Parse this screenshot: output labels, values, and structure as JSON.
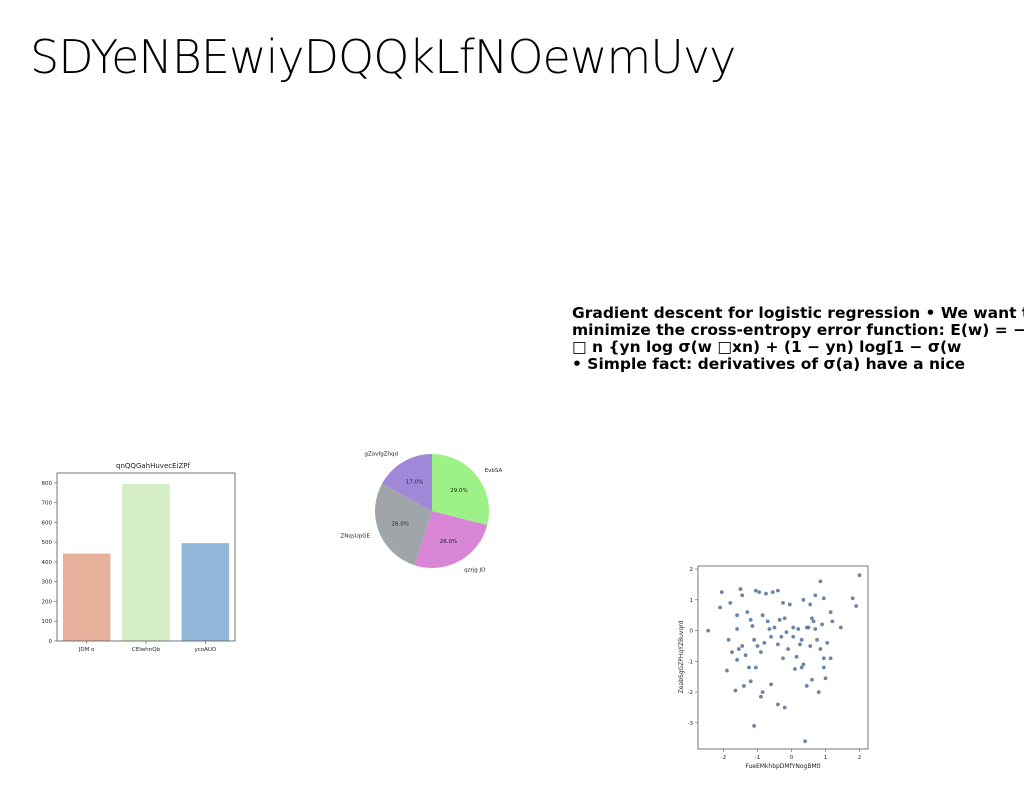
{
  "slide": {
    "title": "SDYeNBEwiyDQQkLfNOewmUvy",
    "text_lines": [
      "Gradient descent for logistic regression • We want to",
      "minimize the cross-entropy error function: E(w) = −",
      "□ n {yn log σ(w □xn) + (1 − yn) log[1 − σ(w",
      "• Simple fact: derivatives of σ(a) have a nice"
    ]
  },
  "chart_data": [
    {
      "type": "bar",
      "title": "qnQQGahHuvecEiZPf",
      "categories": [
        "JDM o",
        "CEIwhnQb",
        "ycoAUO"
      ],
      "values": [
        442,
        795,
        495
      ],
      "colors": [
        "#e6b09a",
        "#d4eec5",
        "#92b6da"
      ],
      "ylim": [
        0,
        850
      ],
      "yticks": [
        0,
        100,
        200,
        300,
        400,
        500,
        600,
        700,
        800
      ]
    },
    {
      "type": "pie",
      "labels": [
        "EvbSA",
        "qzrjg JO",
        "ZNqsUpGE",
        "gZavfgZhqd"
      ],
      "values": [
        29.0,
        26.0,
        28.0,
        17.0
      ],
      "pct_labels": [
        "29.0%",
        "26.0%",
        "28.0%",
        "17.0%"
      ],
      "colors": [
        "#9cf287",
        "#d985d6",
        "#a0a5a9",
        "#9f88d8"
      ]
    },
    {
      "type": "scatter",
      "xlabel": "FueEMkhbpDMfYNogBMtl",
      "ylabel": "ZeabSgGZPHqYZBuvqrd",
      "xlim": [
        -2.75,
        2.25
      ],
      "ylim": [
        -3.85,
        2.1
      ],
      "xticks": [
        -2,
        -1,
        0,
        1,
        2
      ],
      "yticks": [
        -3,
        -2,
        -1,
        0,
        1,
        2
      ],
      "point_color": "#4f7199",
      "points": [
        [
          -2.45,
          0.0
        ],
        [
          -2.05,
          1.25
        ],
        [
          -2.1,
          0.75
        ],
        [
          -1.8,
          0.9
        ],
        [
          -1.6,
          0.5
        ],
        [
          -1.5,
          1.35
        ],
        [
          -1.45,
          1.15
        ],
        [
          -1.2,
          0.35
        ],
        [
          -1.05,
          1.3
        ],
        [
          -0.95,
          1.25
        ],
        [
          -0.75,
          1.2
        ],
        [
          -0.4,
          1.3
        ],
        [
          -0.25,
          0.9
        ],
        [
          -0.05,
          0.85
        ],
        [
          0.35,
          1.0
        ],
        [
          0.55,
          0.85
        ],
        [
          0.7,
          1.15
        ],
        [
          0.85,
          1.6
        ],
        [
          0.95,
          1.05
        ],
        [
          1.15,
          0.6
        ],
        [
          1.45,
          0.1
        ],
        [
          1.8,
          1.05
        ],
        [
          1.9,
          0.8
        ],
        [
          2.0,
          1.8
        ],
        [
          -1.85,
          -0.3
        ],
        [
          -1.75,
          -0.7
        ],
        [
          -1.6,
          -0.95
        ],
        [
          -1.55,
          -0.6
        ],
        [
          -1.35,
          -0.8
        ],
        [
          -1.25,
          -1.2
        ],
        [
          -1.1,
          -0.3
        ],
        [
          -1.0,
          -0.5
        ],
        [
          -0.9,
          -0.7
        ],
        [
          -0.8,
          -0.4
        ],
        [
          -0.7,
          0.3
        ],
        [
          -0.6,
          -0.2
        ],
        [
          -0.5,
          0.1
        ],
        [
          -0.4,
          -0.45
        ],
        [
          -0.3,
          -0.2
        ],
        [
          -0.2,
          0.4
        ],
        [
          -0.1,
          -0.6
        ],
        [
          0.05,
          -0.2
        ],
        [
          0.15,
          -0.85
        ],
        [
          0.25,
          -0.45
        ],
        [
          0.35,
          -1.1
        ],
        [
          0.45,
          0.1
        ],
        [
          0.5,
          0.1
        ],
        [
          0.55,
          -0.5
        ],
        [
          0.6,
          0.4
        ],
        [
          0.65,
          0.3
        ],
        [
          0.75,
          -0.3
        ],
        [
          0.85,
          -0.6
        ],
        [
          0.95,
          -0.9
        ],
        [
          1.05,
          -0.4
        ],
        [
          1.15,
          -0.9
        ],
        [
          -1.9,
          -1.3
        ],
        [
          -1.65,
          -1.95
        ],
        [
          -1.4,
          -1.8
        ],
        [
          -1.2,
          -1.65
        ],
        [
          -1.05,
          -1.2
        ],
        [
          -0.9,
          -2.15
        ],
        [
          -0.85,
          -2.0
        ],
        [
          -0.6,
          -1.75
        ],
        [
          -0.4,
          -2.4
        ],
        [
          -0.2,
          -2.5
        ],
        [
          -1.1,
          -3.1
        ],
        [
          0.3,
          -1.2
        ],
        [
          0.45,
          -1.8
        ],
        [
          0.6,
          -1.6
        ],
        [
          0.8,
          -2.0
        ],
        [
          1.0,
          -1.55
        ],
        [
          0.4,
          -3.6
        ],
        [
          0.05,
          0.1
        ],
        [
          -0.55,
          1.25
        ],
        [
          -1.3,
          0.6
        ],
        [
          -0.85,
          0.5
        ],
        [
          -0.15,
          -0.05
        ],
        [
          0.2,
          0.05
        ],
        [
          0.7,
          0.05
        ],
        [
          1.2,
          0.3
        ],
        [
          -1.6,
          0.05
        ],
        [
          -1.15,
          0.15
        ],
        [
          -0.35,
          0.35
        ],
        [
          0.9,
          0.2
        ],
        [
          -0.65,
          0.05
        ],
        [
          0.3,
          -0.3
        ],
        [
          -1.45,
          -0.5
        ],
        [
          0.1,
          -1.25
        ],
        [
          -0.25,
          -0.9
        ],
        [
          0.95,
          -1.2
        ]
      ]
    }
  ]
}
